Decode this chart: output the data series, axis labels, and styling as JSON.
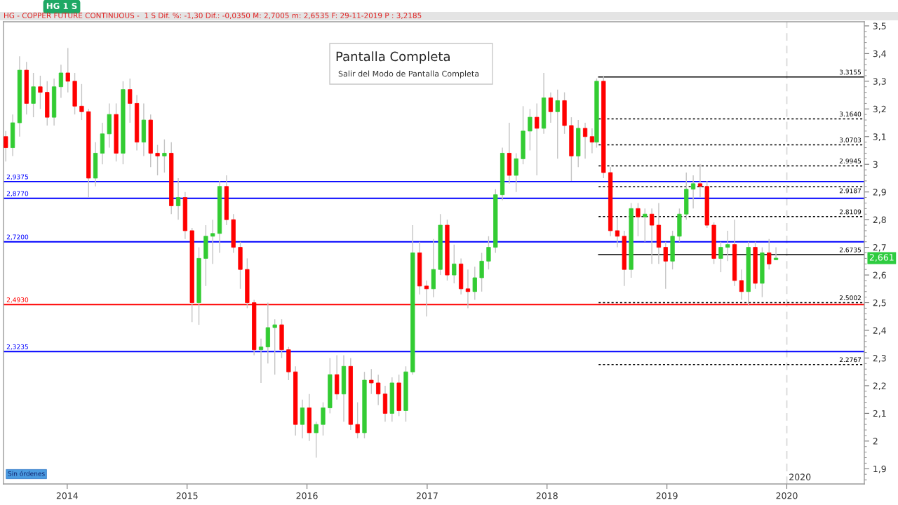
{
  "chart_data": {
    "type": "candlestick",
    "title": "HG 1 S",
    "subtitle": "HG - COPPER FUTURE CONTINUOUS -  1 S Dif. %: -1,30 Dif.: -0,0350 M: 2,7005 m: 2,6535 F: 29-11-2019 P : 3,2185",
    "x": [
      "2013-06-28",
      "2013-07-19",
      "2013-08-09",
      "2013-08-30",
      "2013-09-20",
      "2013-10-11",
      "2013-11-01",
      "2013-11-22",
      "2013-12-13",
      "2014-01-03",
      "2014-01-24",
      "2014-02-14",
      "2014-03-07",
      "2014-03-28",
      "2014-04-18",
      "2014-05-09",
      "2014-05-30",
      "2014-06-20",
      "2014-07-11",
      "2014-08-01",
      "2014-08-22",
      "2014-09-12",
      "2014-10-03",
      "2014-10-24",
      "2014-11-14",
      "2014-12-05",
      "2014-12-26",
      "2015-01-16",
      "2015-02-06",
      "2015-02-27",
      "2015-03-20",
      "2015-04-10",
      "2015-05-01",
      "2015-05-22",
      "2015-06-12",
      "2015-07-03",
      "2015-07-24",
      "2015-08-14",
      "2015-09-04",
      "2015-09-25",
      "2015-10-16",
      "2015-11-06",
      "2015-11-27",
      "2015-12-18",
      "2016-01-08",
      "2016-01-29",
      "2016-02-19",
      "2016-03-11",
      "2016-04-01",
      "2016-04-22",
      "2016-05-13",
      "2016-06-03",
      "2016-06-24",
      "2016-07-15",
      "2016-08-05",
      "2016-08-26",
      "2016-09-16",
      "2016-10-07",
      "2016-10-28",
      "2016-11-18",
      "2016-12-09",
      "2016-12-30",
      "2017-01-20",
      "2017-02-10",
      "2017-03-03",
      "2017-03-24",
      "2017-04-14",
      "2017-05-05",
      "2017-05-26",
      "2017-06-16",
      "2017-07-07",
      "2017-07-28",
      "2017-08-18",
      "2017-09-08",
      "2017-09-29",
      "2017-10-20",
      "2017-11-10",
      "2017-12-01",
      "2017-12-22",
      "2018-01-12",
      "2018-02-02",
      "2018-02-23",
      "2018-03-16",
      "2018-04-06",
      "2018-04-27",
      "2018-05-18",
      "2018-06-01",
      "2018-06-22",
      "2018-07-13",
      "2018-08-03",
      "2018-08-24",
      "2018-09-14",
      "2018-10-05",
      "2018-10-26",
      "2018-11-16",
      "2018-12-07",
      "2018-12-28",
      "2019-01-18",
      "2019-02-08",
      "2019-03-01",
      "2019-03-22",
      "2019-04-12",
      "2019-05-03",
      "2019-05-24",
      "2019-06-14",
      "2019-07-05",
      "2019-07-26",
      "2019-08-16",
      "2019-09-06",
      "2019-09-27",
      "2019-10-18",
      "2019-11-08",
      "2019-11-29"
    ],
    "ohlc": [
      [
        3.1,
        3.12,
        3.01,
        3.06
      ],
      [
        3.06,
        3.18,
        3.03,
        3.15
      ],
      [
        3.15,
        3.39,
        3.1,
        3.34
      ],
      [
        3.34,
        3.37,
        3.18,
        3.22
      ],
      [
        3.22,
        3.33,
        3.17,
        3.28
      ],
      [
        3.28,
        3.32,
        3.2,
        3.26
      ],
      [
        3.26,
        3.3,
        3.14,
        3.17
      ],
      [
        3.17,
        3.31,
        3.14,
        3.28
      ],
      [
        3.28,
        3.36,
        3.24,
        3.33
      ],
      [
        3.33,
        3.42,
        3.26,
        3.3
      ],
      [
        3.3,
        3.33,
        3.18,
        3.21
      ],
      [
        3.21,
        3.29,
        3.16,
        3.19
      ],
      [
        3.19,
        3.2,
        2.88,
        2.95
      ],
      [
        2.95,
        3.08,
        2.92,
        3.04
      ],
      [
        3.04,
        3.15,
        3.0,
        3.11
      ],
      [
        3.11,
        3.22,
        3.06,
        3.18
      ],
      [
        3.18,
        3.22,
        3.01,
        3.04
      ],
      [
        3.04,
        3.3,
        3.0,
        3.27
      ],
      [
        3.27,
        3.31,
        3.15,
        3.22
      ],
      [
        3.22,
        3.25,
        3.05,
        3.08
      ],
      [
        3.08,
        3.22,
        3.03,
        3.16
      ],
      [
        3.16,
        3.18,
        2.99,
        3.04
      ],
      [
        3.04,
        3.07,
        2.96,
        3.03
      ],
      [
        3.03,
        3.09,
        2.97,
        3.04
      ],
      [
        3.04,
        3.08,
        2.82,
        2.85
      ],
      [
        2.85,
        2.95,
        2.8,
        2.88
      ],
      [
        2.88,
        2.9,
        2.73,
        2.76
      ],
      [
        2.76,
        2.77,
        2.43,
        2.5
      ],
      [
        2.5,
        2.7,
        2.42,
        2.66
      ],
      [
        2.66,
        2.78,
        2.56,
        2.74
      ],
      [
        2.74,
        2.8,
        2.64,
        2.75
      ],
      [
        2.75,
        2.94,
        2.68,
        2.92
      ],
      [
        2.92,
        2.96,
        2.78,
        2.8
      ],
      [
        2.8,
        2.82,
        2.68,
        2.7
      ],
      [
        2.7,
        2.72,
        2.55,
        2.62
      ],
      [
        2.62,
        2.66,
        2.48,
        2.5
      ],
      [
        2.5,
        2.51,
        2.31,
        2.33
      ],
      [
        2.33,
        2.37,
        2.21,
        2.34
      ],
      [
        2.34,
        2.5,
        2.28,
        2.41
      ],
      [
        2.41,
        2.44,
        2.24,
        2.42
      ],
      [
        2.42,
        2.44,
        2.3,
        2.33
      ],
      [
        2.33,
        2.34,
        2.22,
        2.25
      ],
      [
        2.25,
        2.27,
        2.02,
        2.06
      ],
      [
        2.06,
        2.15,
        2.01,
        2.12
      ],
      [
        2.12,
        2.17,
        2.0,
        2.03
      ],
      [
        2.03,
        2.07,
        1.94,
        2.06
      ],
      [
        2.06,
        2.14,
        2.02,
        2.12
      ],
      [
        2.12,
        2.3,
        2.1,
        2.24
      ],
      [
        2.24,
        2.31,
        2.15,
        2.17
      ],
      [
        2.17,
        2.31,
        2.07,
        2.27
      ],
      [
        2.27,
        2.3,
        2.04,
        2.06
      ],
      [
        2.06,
        2.14,
        2.01,
        2.03
      ],
      [
        2.03,
        2.25,
        2.01,
        2.22
      ],
      [
        2.22,
        2.26,
        2.17,
        2.21
      ],
      [
        2.21,
        2.24,
        2.13,
        2.17
      ],
      [
        2.17,
        2.2,
        2.07,
        2.1
      ],
      [
        2.1,
        2.23,
        2.07,
        2.21
      ],
      [
        2.21,
        2.24,
        2.09,
        2.11
      ],
      [
        2.11,
        2.27,
        2.07,
        2.25
      ],
      [
        2.25,
        2.78,
        2.24,
        2.68
      ],
      [
        2.68,
        2.72,
        2.53,
        2.56
      ],
      [
        2.56,
        2.58,
        2.45,
        2.55
      ],
      [
        2.55,
        2.73,
        2.52,
        2.62
      ],
      [
        2.62,
        2.82,
        2.6,
        2.78
      ],
      [
        2.78,
        2.8,
        2.58,
        2.6
      ],
      [
        2.6,
        2.71,
        2.57,
        2.64
      ],
      [
        2.64,
        2.66,
        2.53,
        2.55
      ],
      [
        2.55,
        2.62,
        2.48,
        2.54
      ],
      [
        2.54,
        2.63,
        2.51,
        2.59
      ],
      [
        2.59,
        2.68,
        2.54,
        2.65
      ],
      [
        2.65,
        2.74,
        2.62,
        2.7
      ],
      [
        2.7,
        2.91,
        2.68,
        2.89
      ],
      [
        2.89,
        3.06,
        2.87,
        3.04
      ],
      [
        3.04,
        3.15,
        2.93,
        2.96
      ],
      [
        2.96,
        3.04,
        2.9,
        3.02
      ],
      [
        3.02,
        3.21,
        3.0,
        3.12
      ],
      [
        3.12,
        3.2,
        3.05,
        3.17
      ],
      [
        3.17,
        3.22,
        2.96,
        3.13
      ],
      [
        3.13,
        3.33,
        3.11,
        3.24
      ],
      [
        3.24,
        3.26,
        3.15,
        3.19
      ],
      [
        3.19,
        3.27,
        3.02,
        3.23
      ],
      [
        3.23,
        3.26,
        3.11,
        3.14
      ],
      [
        3.14,
        3.17,
        2.94,
        3.03
      ],
      [
        3.03,
        3.16,
        2.99,
        3.13
      ],
      [
        3.13,
        3.15,
        3.02,
        3.1
      ],
      [
        3.1,
        3.13,
        3.04,
        3.08
      ],
      [
        3.08,
        3.31,
        3.06,
        3.3
      ],
      [
        3.3,
        3.32,
        2.95,
        2.97
      ],
      [
        2.97,
        2.99,
        2.74,
        2.76
      ],
      [
        2.76,
        2.81,
        2.7,
        2.74
      ],
      [
        2.74,
        2.76,
        2.56,
        2.62
      ],
      [
        2.62,
        2.86,
        2.59,
        2.84
      ],
      [
        2.84,
        2.86,
        2.74,
        2.81
      ],
      [
        2.81,
        2.84,
        2.72,
        2.82
      ],
      [
        2.82,
        2.84,
        2.64,
        2.78
      ],
      [
        2.78,
        2.86,
        2.64,
        2.7
      ],
      [
        2.7,
        2.72,
        2.55,
        2.65
      ],
      [
        2.65,
        2.76,
        2.62,
        2.74
      ],
      [
        2.74,
        2.84,
        2.72,
        2.82
      ],
      [
        2.82,
        2.97,
        2.8,
        2.91
      ],
      [
        2.91,
        2.96,
        2.84,
        2.93
      ],
      [
        2.93,
        3.0,
        2.88,
        2.92
      ],
      [
        2.92,
        2.94,
        2.77,
        2.78
      ],
      [
        2.78,
        2.79,
        2.64,
        2.66
      ],
      [
        2.66,
        2.72,
        2.61,
        2.7
      ],
      [
        2.7,
        2.76,
        2.65,
        2.71
      ],
      [
        2.71,
        2.8,
        2.56,
        2.58
      ],
      [
        2.58,
        2.62,
        2.51,
        2.54
      ],
      [
        2.54,
        2.72,
        2.49,
        2.7
      ],
      [
        2.7,
        2.72,
        2.55,
        2.57
      ],
      [
        2.57,
        2.7,
        2.52,
        2.68
      ],
      [
        2.68,
        2.73,
        2.62,
        2.64
      ],
      [
        2.655,
        2.7005,
        2.6535,
        2.661
      ]
    ],
    "colors": [
      "#ff0000",
      "#33cc33",
      "#33cc33",
      "#ff0000",
      "#33cc33",
      "#ff0000",
      "#ff0000",
      "#33cc33",
      "#33cc33",
      "#ff0000",
      "#ff0000",
      "#ff0000",
      "#ff0000",
      "#33cc33",
      "#33cc33",
      "#33cc33",
      "#ff0000",
      "#33cc33",
      "#ff0000",
      "#ff0000",
      "#33cc33",
      "#ff0000",
      "#ff0000",
      "#33cc33",
      "#ff0000",
      "#33cc33",
      "#ff0000",
      "#ff0000",
      "#33cc33",
      "#33cc33",
      "#33cc33",
      "#33cc33",
      "#ff0000",
      "#ff0000",
      "#ff0000",
      "#ff0000",
      "#ff0000",
      "#33cc33",
      "#33cc33",
      "#33cc33",
      "#ff0000",
      "#ff0000",
      "#ff0000",
      "#33cc33",
      "#ff0000",
      "#33cc33",
      "#33cc33",
      "#33cc33",
      "#ff0000",
      "#33cc33",
      "#ff0000",
      "#ff0000",
      "#33cc33",
      "#ff0000",
      "#ff0000",
      "#ff0000",
      "#33cc33",
      "#ff0000",
      "#33cc33",
      "#33cc33",
      "#ff0000",
      "#ff0000",
      "#33cc33",
      "#33cc33",
      "#ff0000",
      "#33cc33",
      "#ff0000",
      "#ff0000",
      "#33cc33",
      "#33cc33",
      "#33cc33",
      "#33cc33",
      "#33cc33",
      "#ff0000",
      "#33cc33",
      "#33cc33",
      "#33cc33",
      "#ff0000",
      "#33cc33",
      "#ff0000",
      "#33cc33",
      "#ff0000",
      "#ff0000",
      "#33cc33",
      "#ff0000",
      "#ff0000",
      "#33cc33",
      "#ff0000",
      "#ff0000",
      "#ff0000",
      "#ff0000",
      "#33cc33",
      "#ff0000",
      "#33cc33",
      "#ff0000",
      "#ff0000",
      "#ff0000",
      "#33cc33",
      "#33cc33",
      "#33cc33",
      "#33cc33",
      "#ff0000",
      "#ff0000",
      "#ff0000",
      "#33cc33",
      "#33cc33",
      "#ff0000",
      "#ff0000",
      "#33cc33",
      "#ff0000",
      "#33cc33",
      "#ff0000",
      "#33cc33"
    ],
    "series": [
      {
        "type": "line",
        "name": "3.3155",
        "x": [
          "2018-06-07",
          "2020-08-24"
        ],
        "values": [
          3.3155,
          3.3155
        ],
        "color": "#000000",
        "line_style": "solid"
      },
      {
        "type": "line",
        "name": "3.1640",
        "x": [
          "2018-06-07",
          "2020-08-24"
        ],
        "values": [
          3.164,
          3.164
        ],
        "color": "#000000",
        "line_style": "dotted"
      },
      {
        "type": "line",
        "name": "3.0703",
        "x": [
          "2018-06-07",
          "2020-08-24"
        ],
        "values": [
          3.0703,
          3.0703
        ],
        "color": "#000000",
        "line_style": "dotted"
      },
      {
        "type": "line",
        "name": "2.9945",
        "x": [
          "2018-06-07",
          "2020-08-24"
        ],
        "values": [
          2.9945,
          2.9945
        ],
        "color": "#000000",
        "line_style": "dotted"
      },
      {
        "type": "line",
        "name": "2.9187",
        "x": [
          "2018-06-07",
          "2020-08-24"
        ],
        "values": [
          2.9187,
          2.9187
        ],
        "color": "#000000",
        "line_style": "dotted"
      },
      {
        "type": "line",
        "name": "2.8109",
        "x": [
          "2018-06-07",
          "2020-08-24"
        ],
        "values": [
          2.8109,
          2.8109
        ],
        "color": "#000000",
        "line_style": "dotted"
      },
      {
        "type": "line",
        "name": "2.6735",
        "x": [
          "2018-06-07",
          "2020-08-24"
        ],
        "values": [
          2.6735,
          2.6735
        ],
        "color": "#000000",
        "line_style": "solid"
      },
      {
        "type": "line",
        "name": "2.5002",
        "x": [
          "2018-06-07",
          "2020-08-24"
        ],
        "values": [
          2.5002,
          2.5002
        ],
        "color": "#000000",
        "line_style": "dotted"
      },
      {
        "type": "line",
        "name": "2.2767",
        "x": [
          "2018-06-07",
          "2020-08-24"
        ],
        "values": [
          2.2767,
          2.2767
        ],
        "color": "#000000",
        "line_style": "dotted"
      }
    ],
    "ref_lines": [
      {
        "axis": "y",
        "value": 2.9375,
        "label": "2,9375",
        "color": "#0000ff"
      },
      {
        "axis": "y",
        "value": 2.877,
        "label": "2,8770",
        "color": "#0000ff"
      },
      {
        "axis": "y",
        "value": 2.72,
        "label": "2,7200",
        "color": "#0000ff"
      },
      {
        "axis": "y",
        "value": 2.493,
        "label": "2,4930",
        "color": "#ff0000"
      },
      {
        "axis": "y",
        "value": 2.3235,
        "label": "2,3235",
        "color": "#0000ff"
      },
      {
        "axis": "x",
        "value": "2020-01-01",
        "label": "2020",
        "color": "#d9d9d9",
        "line_style": "dashed"
      }
    ],
    "annotations": [
      {
        "text": "2,661",
        "x": "2020-08-24",
        "y": 2.661
      },
      "Pantalla Completa",
      "Salir del Modo de Pantalla Completa",
      "Sin órdenes"
    ],
    "xlim": [
      "2013-06-21",
      "2020-08-24"
    ],
    "xticks": [
      {
        "value": "2014-01-01",
        "label": "2014"
      },
      {
        "value": "2015-01-01",
        "label": "2015"
      },
      {
        "value": "2016-01-01",
        "label": "2016"
      },
      {
        "value": "2017-01-01",
        "label": "2017"
      },
      {
        "value": "2018-01-01",
        "label": "2018"
      },
      {
        "value": "2019-01-01",
        "label": "2019"
      },
      {
        "value": "2020-01-01",
        "label": "2020"
      }
    ],
    "ylim": [
      1.845,
      3.515
    ],
    "yticks": [
      {
        "value": 1.9,
        "label": "1,9"
      },
      2,
      {
        "value": 2.1,
        "label": "2,1"
      },
      {
        "value": 2.2,
        "label": "2,2"
      },
      {
        "value": 2.3,
        "label": "2,3"
      },
      {
        "value": 2.4,
        "label": "2,4"
      },
      {
        "value": 2.5,
        "label": "2,5"
      },
      {
        "value": 2.6,
        "label": "2,6"
      },
      {
        "value": 2.7,
        "label": "2,7"
      },
      {
        "value": 2.8,
        "label": "2,8"
      },
      {
        "value": 2.9,
        "label": "2,9"
      },
      3,
      {
        "value": 3.1,
        "label": "3,1"
      },
      {
        "value": 3.2,
        "label": "3,2"
      },
      {
        "value": 3.3,
        "label": "3,3"
      },
      {
        "value": 3.4,
        "label": "3,4"
      },
      {
        "value": 3.5,
        "label": "3,5"
      }
    ]
  }
}
